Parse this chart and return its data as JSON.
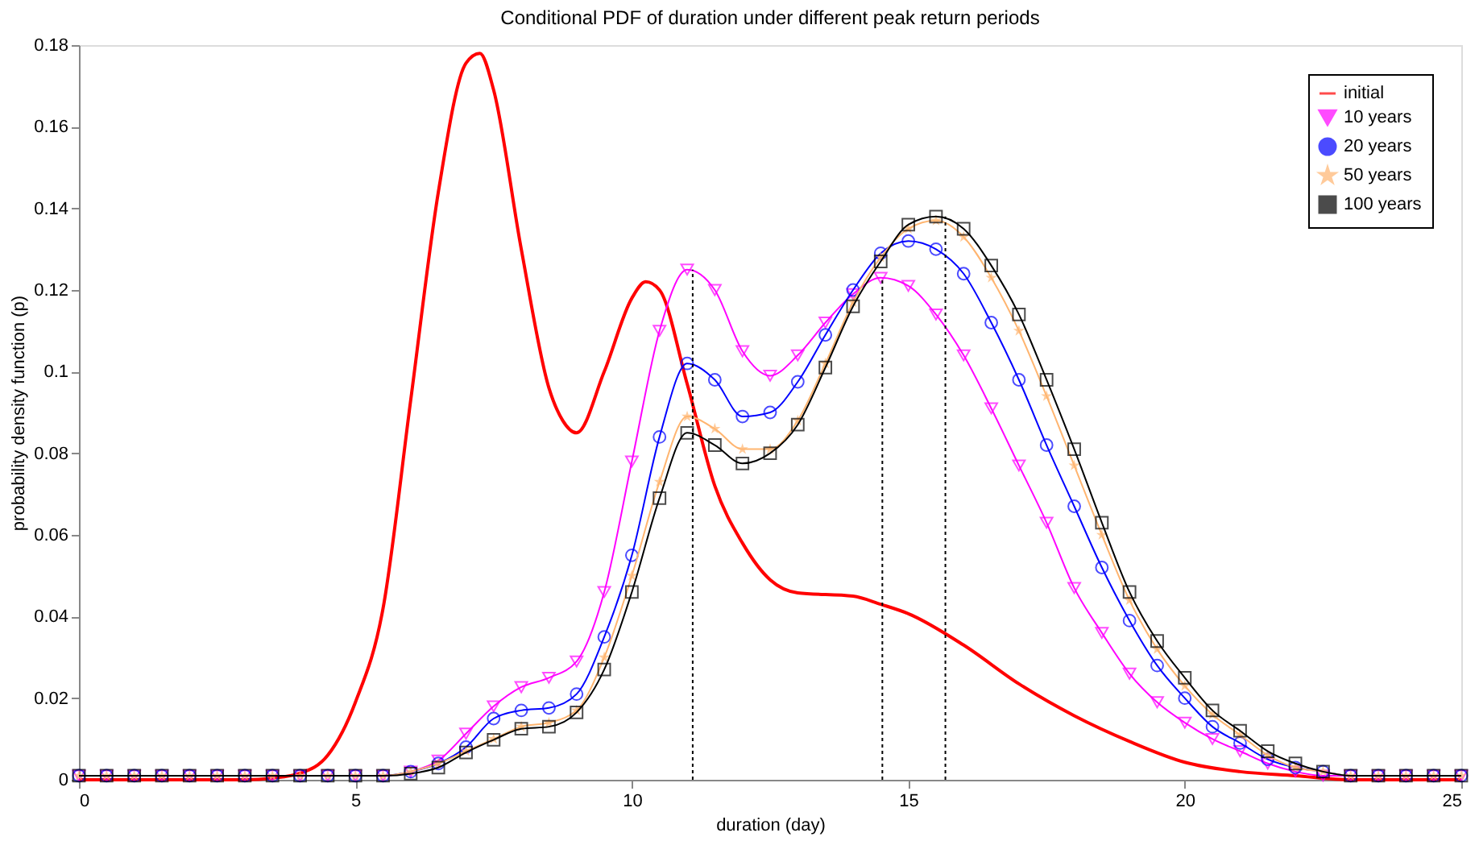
{
  "chart_data": {
    "type": "line",
    "title": "Conditional PDF of duration under different peak return periods",
    "xlabel": "duration (day)",
    "ylabel": "probability density function (p)",
    "x": [
      0,
      0.5,
      1,
      1.5,
      2,
      2.5,
      3,
      3.5,
      4,
      4.5,
      5,
      5.5,
      6,
      6.5,
      7,
      7.5,
      8,
      8.5,
      9,
      9.5,
      10,
      10.5,
      11,
      11.5,
      12,
      12.5,
      13,
      13.5,
      14,
      14.5,
      15,
      15.5,
      16,
      16.5,
      17,
      17.5,
      18,
      18.5,
      19,
      19.5,
      20,
      20.5,
      21,
      21.5,
      22,
      22.5,
      23,
      23.5,
      24,
      24.5,
      25
    ],
    "xlim": [
      0,
      25
    ],
    "xticks": [
      0,
      5,
      10,
      15,
      20,
      25
    ],
    "ylim": [
      0,
      0.18
    ],
    "yticks": [
      0,
      0.02,
      0.04,
      0.06,
      0.08,
      0.1,
      0.12,
      0.14,
      0.16,
      0.18
    ],
    "grid": false,
    "legend": "top right",
    "series": [
      {
        "name": "initial",
        "color": "#ff0000",
        "marker": "none",
        "x": [
          0,
          1,
          2,
          3,
          3.5,
          4,
          4.5,
          5,
          5.5,
          6,
          6.5,
          7,
          7.25,
          7.5,
          8,
          8.5,
          8.75,
          9,
          9.5,
          10,
          10.25,
          10.5,
          11,
          11.5,
          12,
          12.5,
          13,
          14,
          14.5,
          15,
          16,
          17,
          18,
          19,
          20,
          21,
          22,
          23,
          25
        ],
        "values": [
          0,
          0,
          0,
          0,
          0.0004,
          0.0016,
          0.006,
          0.019,
          0.042,
          0.093,
          0.144,
          0.1756,
          0.178,
          0.169,
          0.13,
          0.096,
          0.088,
          0.085,
          0.1,
          0.118,
          0.122,
          0.12,
          0.097,
          0.072,
          0.058,
          0.049,
          0.0458,
          0.045,
          0.043,
          0.0407,
          0.033,
          0.0235,
          0.0157,
          0.0094,
          0.0043,
          0.002,
          0.001,
          0,
          0
        ]
      },
      {
        "name": "10 years",
        "color": "#ff00ff",
        "marker": "triangle",
        "values": [
          0.001,
          0.001,
          0.001,
          0.001,
          0.001,
          0.001,
          0.001,
          0.001,
          0.001,
          0.001,
          0.001,
          0.001,
          0.002,
          0.0047,
          0.0113,
          0.018,
          0.0227,
          0.025,
          0.029,
          0.046,
          0.078,
          0.11,
          0.125,
          0.12,
          0.105,
          0.099,
          0.104,
          0.112,
          0.119,
          0.123,
          0.121,
          0.114,
          0.104,
          0.091,
          0.077,
          0.063,
          0.047,
          0.036,
          0.026,
          0.019,
          0.014,
          0.01,
          0.007,
          0.004,
          0.002,
          0.001,
          0.001,
          0.001,
          0.001,
          0.001,
          0.001
        ]
      },
      {
        "name": "20 years",
        "color": "#0000ff",
        "marker": "circle",
        "values": [
          0.001,
          0.001,
          0.001,
          0.001,
          0.001,
          0.001,
          0.001,
          0.001,
          0.001,
          0.001,
          0.001,
          0.001,
          0.002,
          0.004,
          0.008,
          0.015,
          0.017,
          0.0176,
          0.021,
          0.035,
          0.055,
          0.084,
          0.102,
          0.098,
          0.089,
          0.09,
          0.0975,
          0.109,
          0.12,
          0.129,
          0.132,
          0.13,
          0.124,
          0.112,
          0.098,
          0.082,
          0.067,
          0.052,
          0.039,
          0.028,
          0.02,
          0.013,
          0.009,
          0.005,
          0.003,
          0.002,
          0.001,
          0.001,
          0.001,
          0.001,
          0.001
        ]
      },
      {
        "name": "50 years",
        "color": "#ffb570",
        "marker": "star",
        "values": [
          0.001,
          0.001,
          0.001,
          0.001,
          0.001,
          0.001,
          0.001,
          0.001,
          0.001,
          0.001,
          0.001,
          0.001,
          0.002,
          0.004,
          0.007,
          0.01,
          0.013,
          0.014,
          0.017,
          0.03,
          0.05,
          0.073,
          0.089,
          0.086,
          0.081,
          0.081,
          0.088,
          0.102,
          0.117,
          0.128,
          0.135,
          0.137,
          0.133,
          0.123,
          0.11,
          0.094,
          0.077,
          0.06,
          0.044,
          0.032,
          0.023,
          0.016,
          0.011,
          0.006,
          0.003,
          0.002,
          0.001,
          0.001,
          0.001,
          0.001,
          0.001
        ]
      },
      {
        "name": "100 years",
        "color": "#000000",
        "marker": "square",
        "values": [
          0.001,
          0.001,
          0.001,
          0.001,
          0.001,
          0.001,
          0.001,
          0.001,
          0.001,
          0.001,
          0.001,
          0.001,
          0.0015,
          0.003,
          0.0067,
          0.0098,
          0.0125,
          0.013,
          0.0165,
          0.027,
          0.046,
          0.069,
          0.085,
          0.082,
          0.0775,
          0.08,
          0.087,
          0.101,
          0.116,
          0.127,
          0.136,
          0.138,
          0.135,
          0.126,
          0.114,
          0.098,
          0.081,
          0.063,
          0.046,
          0.034,
          0.025,
          0.017,
          0.012,
          0.007,
          0.004,
          0.002,
          0.001,
          0.001,
          0.001,
          0.001,
          0.001
        ]
      },
      {
        "type": "line",
        "color": "#000000",
        "line_style": "dotted",
        "marker": "none",
        "x": [
          11.1,
          11.1
        ],
        "values": [
          0,
          0.125
        ]
      },
      {
        "type": "line",
        "color": "#000000",
        "line_style": "dotted",
        "marker": "none",
        "x": [
          14.53,
          14.53
        ],
        "values": [
          0,
          0.123
        ]
      },
      {
        "type": "line",
        "color": "#000000",
        "line_style": "dotted",
        "marker": "none",
        "x": [
          15.67,
          15.67
        ],
        "values": [
          0,
          0.138
        ]
      }
    ]
  }
}
